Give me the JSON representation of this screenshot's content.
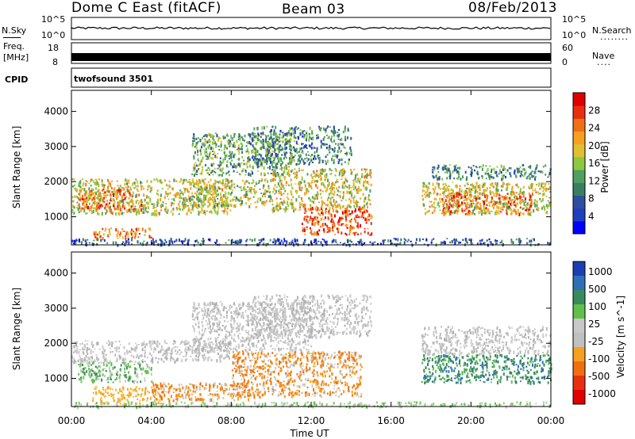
{
  "header": {
    "station": "Dome C East (fitACF)",
    "beam": "Beam 03",
    "date": "08/Feb/2013"
  },
  "strips": {
    "nsky": {
      "label": "N.Sky",
      "left_top": "10^5",
      "left_bottom": "10^0",
      "right_top": "10^5",
      "right_bottom": "10^0",
      "right_title": "N.Search",
      "right_dots": "........"
    },
    "freq": {
      "label_line1": "Freq.",
      "label_line2": "[MHz]",
      "left_top": "18",
      "left_bottom": "8",
      "right_top": "60",
      "right_bottom": "0",
      "right_title": "Nave",
      "right_dots": "...."
    },
    "cpid": {
      "label": "CPID",
      "value": "twofsound 3501"
    }
  },
  "chart_data": [
    {
      "type": "heatmap",
      "title": "",
      "xlabel": "",
      "ylabel": "Slant Range [km]",
      "x_ticks": [
        "00:00",
        "04:00",
        "08:00",
        "12:00",
        "16:00",
        "20:00",
        "00:00"
      ],
      "x_hours": [
        0,
        4,
        8,
        12,
        16,
        20,
        24
      ],
      "y_ticks": [
        1000,
        2000,
        3000,
        4000
      ],
      "ylim": [
        200,
        4600
      ],
      "xlim_hours": [
        0,
        24
      ],
      "colorbar": {
        "label": "Power [dB]",
        "ticks": [
          4,
          8,
          12,
          16,
          20,
          24,
          28
        ],
        "range": [
          0,
          32
        ],
        "colors": [
          "#0000ff",
          "#1f3fbf",
          "#2e4fa0",
          "#3a8060",
          "#4fa060",
          "#8cc840",
          "#e0c030",
          "#f5a020",
          "#f07018",
          "#e83010",
          "#e00000"
        ]
      },
      "echo_regions": [
        {
          "h": [
            0,
            8
          ],
          "r": [
            1100,
            2100
          ],
          "level": 18
        },
        {
          "h": [
            0.3,
            3.5
          ],
          "r": [
            1200,
            1800
          ],
          "level": 26
        },
        {
          "h": [
            1,
            4
          ],
          "r": [
            400,
            700
          ],
          "level": 24
        },
        {
          "h": [
            5.5,
            10
          ],
          "r": [
            1300,
            2100
          ],
          "level": 17
        },
        {
          "h": [
            6,
            11
          ],
          "r": [
            2200,
            3400
          ],
          "level": 13
        },
        {
          "h": [
            9,
            14
          ],
          "r": [
            2500,
            3600
          ],
          "level": 10
        },
        {
          "h": [
            10,
            15
          ],
          "r": [
            1200,
            2400
          ],
          "level": 19
        },
        {
          "h": [
            11.5,
            15
          ],
          "r": [
            500,
            1300
          ],
          "level": 27
        },
        {
          "h": [
            17.5,
            24
          ],
          "r": [
            1100,
            2000
          ],
          "level": 19
        },
        {
          "h": [
            18.5,
            23
          ],
          "r": [
            1100,
            1700
          ],
          "level": 25
        },
        {
          "h": [
            18,
            24
          ],
          "r": [
            2100,
            2500
          ],
          "level": 10
        },
        {
          "h": [
            0,
            24
          ],
          "r": [
            220,
            400
          ],
          "level": 6
        }
      ]
    },
    {
      "type": "heatmap",
      "title": "",
      "xlabel": "Time UT",
      "ylabel": "Slant Range [km]",
      "x_ticks": [
        "00:00",
        "04:00",
        "08:00",
        "12:00",
        "16:00",
        "20:00",
        "00:00"
      ],
      "x_hours": [
        0,
        4,
        8,
        12,
        16,
        20,
        24
      ],
      "y_ticks": [
        1000,
        2000,
        3000,
        4000
      ],
      "ylim": [
        200,
        4600
      ],
      "xlim_hours": [
        0,
        24
      ],
      "colorbar": {
        "label": "Velocity [m s^-1]",
        "ticks": [
          "1000",
          "500",
          "100",
          "25",
          "-25",
          "-100",
          "-500",
          "-1000"
        ],
        "colors": [
          "#1a3fb0",
          "#2f6fb8",
          "#3a8a60",
          "#5fc04a",
          "#c8c8c8",
          "#c0c0c0",
          "#f5a020",
          "#f07010",
          "#e83010",
          "#e00000"
        ]
      },
      "echo_regions": [
        {
          "h": [
            0,
            8
          ],
          "r": [
            1500,
            2100
          ],
          "level": "gray"
        },
        {
          "h": [
            0.3,
            4
          ],
          "r": [
            900,
            1500
          ],
          "level": "green"
        },
        {
          "h": [
            1,
            4.5
          ],
          "r": [
            300,
            800
          ],
          "level": "orange-light"
        },
        {
          "h": [
            4,
            9
          ],
          "r": [
            400,
            900
          ],
          "level": "orange"
        },
        {
          "h": [
            6,
            12
          ],
          "r": [
            1800,
            3200
          ],
          "level": "gray"
        },
        {
          "h": [
            9,
            15
          ],
          "r": [
            2200,
            3400
          ],
          "level": "gray"
        },
        {
          "h": [
            8,
            14.5
          ],
          "r": [
            500,
            1800
          ],
          "level": "orange"
        },
        {
          "h": [
            17.5,
            24
          ],
          "r": [
            900,
            1700
          ],
          "level": "green-dark"
        },
        {
          "h": [
            17.5,
            24
          ],
          "r": [
            1700,
            2500
          ],
          "level": "gray"
        },
        {
          "h": [
            0,
            24
          ],
          "r": [
            220,
            350
          ],
          "level": "green-light"
        }
      ]
    }
  ]
}
